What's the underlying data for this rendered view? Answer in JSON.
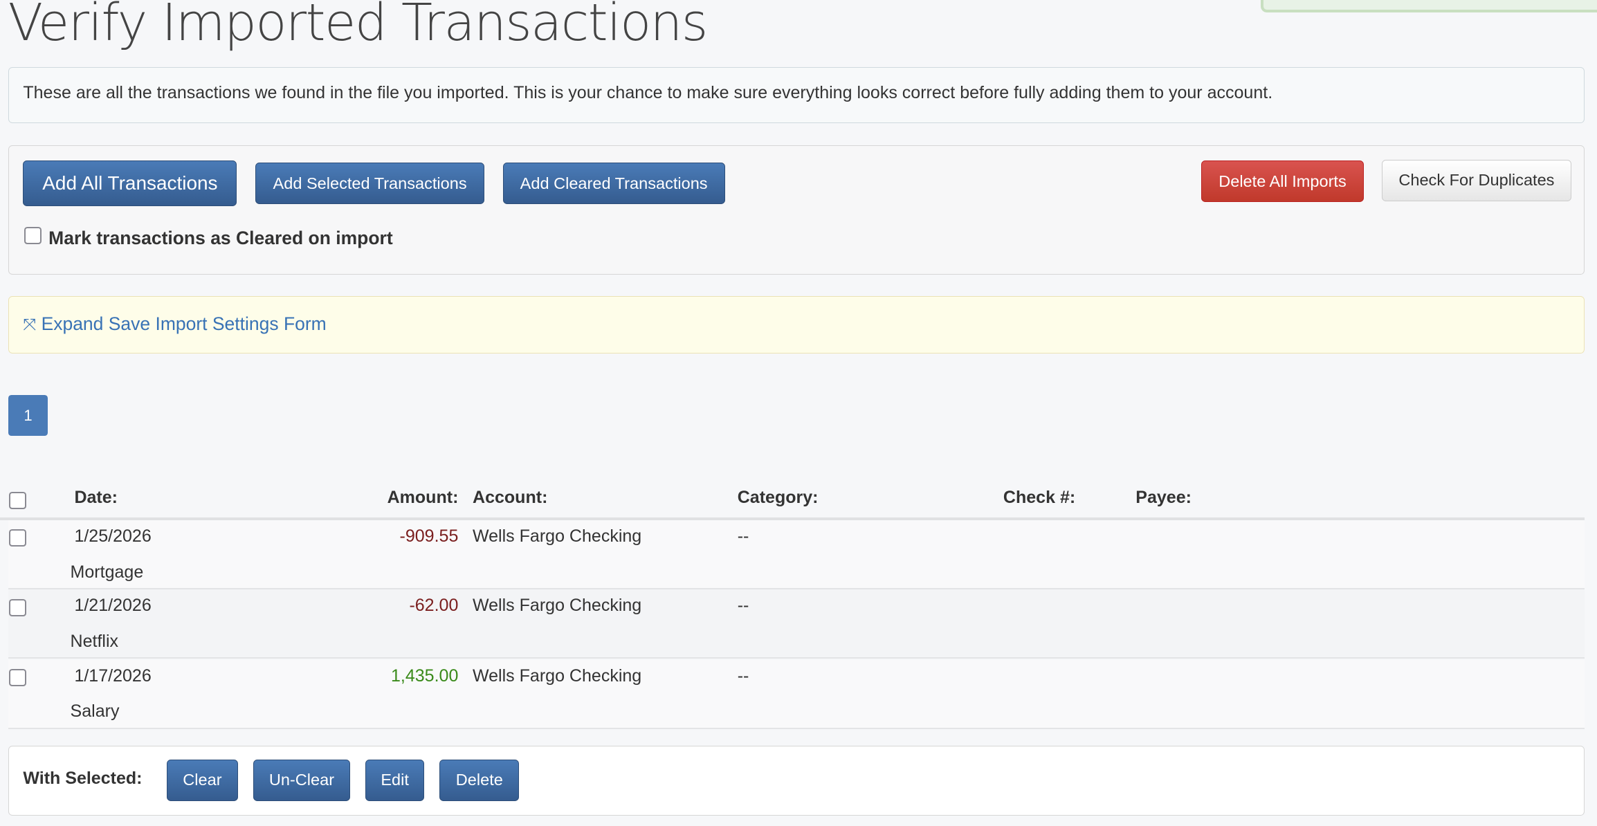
{
  "title": "Verify Imported Transactions",
  "info": "These are all the transactions we found in the file you imported. This is your chance to make sure everything looks correct before fully adding them to your account.",
  "actions": {
    "add_all": "Add All Transactions",
    "add_selected": "Add Selected Transactions",
    "add_cleared": "Add Cleared Transactions",
    "delete_all": "Delete All Imports",
    "check_duplicates": "Check For Duplicates",
    "mark_cleared": "Mark transactions as Cleared on import"
  },
  "expand_link": "Expand Save Import Settings Form",
  "pagination": {
    "current": "1"
  },
  "table": {
    "headers": {
      "date": "Date:",
      "amount": "Amount:",
      "account": "Account:",
      "category": "Category:",
      "check": "Check #:",
      "payee": "Payee:"
    },
    "rows": [
      {
        "date": "1/25/2026",
        "amount": "-909.55",
        "account": "Wells Fargo Checking",
        "category": "--",
        "description": "Mortgage"
      },
      {
        "date": "1/21/2026",
        "amount": "-62.00",
        "account": "Wells Fargo Checking",
        "category": "--",
        "description": "Netflix"
      },
      {
        "date": "1/17/2026",
        "amount": "1,435.00",
        "account": "Wells Fargo Checking",
        "category": "--",
        "description": "Salary"
      }
    ]
  },
  "bulk": {
    "label": "With Selected:",
    "clear": "Clear",
    "unclear": "Un-Clear",
    "edit": "Edit",
    "delete": "Delete"
  },
  "colors": {
    "primary": "#4a7bb7",
    "danger": "#d9534f",
    "negative": "#7a1e1e",
    "positive": "#3a8a1a"
  }
}
